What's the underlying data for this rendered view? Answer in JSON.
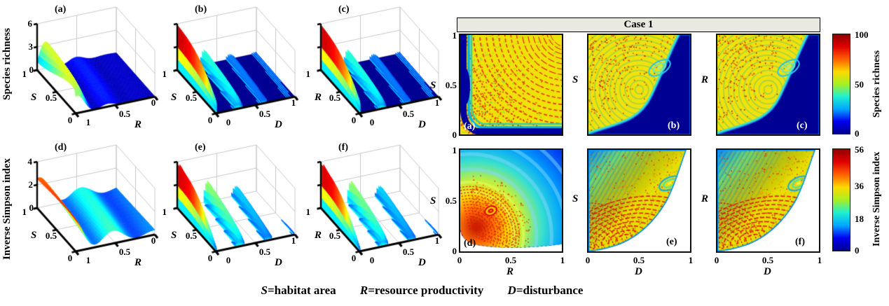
{
  "figure": {
    "case_label": "Case 1",
    "caption": [
      {
        "var": "S",
        "text": "=habitat area"
      },
      {
        "var": "R",
        "text": "=resource productivity"
      },
      {
        "var": "D",
        "text": "=disturbance"
      }
    ],
    "colors": {
      "header_bg": "#e9e9e2",
      "panel_border": "#111111",
      "axis_color": "#000000",
      "grid_color": "#c8c8c8",
      "jet": [
        "#00008f",
        "#0000f0",
        "#00a8ff",
        "#20f0d0",
        "#a8f020",
        "#ffd800",
        "#ff6000",
        "#e00000",
        "#8f0000"
      ]
    }
  },
  "left3d": {
    "row1_label": "Species richness",
    "row2_label": "Inverse Simpson index",
    "panels": [
      {
        "tag": "(a)",
        "z_ticks": [
          "6",
          "3",
          "0"
        ],
        "y_letter": "S",
        "y_ticks": [
          "1",
          "0.5",
          "0"
        ],
        "x_letter": "R",
        "x_ticks": [
          "1",
          "0.5",
          "0"
        ]
      },
      {
        "tag": "(b)",
        "y_letter": "S",
        "y_ticks": [
          "1",
          "0.5",
          "0"
        ],
        "x_letter": "D",
        "x_ticks": [
          "0",
          "0.5",
          "1"
        ]
      },
      {
        "tag": "(c)",
        "y_letter": "R",
        "y_ticks": [
          "1",
          "0.5",
          "0"
        ],
        "x_letter": "D",
        "x_ticks": [
          "0",
          "0.5",
          "1"
        ]
      },
      {
        "tag": "(d)",
        "z_ticks": [
          "4",
          "2",
          "0"
        ],
        "y_letter": "S",
        "y_ticks": [
          "1",
          "0.5",
          "0"
        ],
        "x_letter": "R",
        "x_ticks": [
          "1",
          "0.5",
          "0"
        ]
      },
      {
        "tag": "(e)",
        "y_letter": "S",
        "y_ticks": [
          "1",
          "0.5",
          "0"
        ],
        "x_letter": "D",
        "x_ticks": [
          "0",
          "0.5",
          "1"
        ]
      },
      {
        "tag": "(f)",
        "y_letter": "R",
        "y_ticks": [
          "1",
          "0.5",
          "0"
        ],
        "x_letter": "D",
        "x_ticks": [
          "0",
          "0.5",
          "1"
        ]
      }
    ]
  },
  "right2d": {
    "header": "Case 1",
    "panels": [
      {
        "tag": "(a)",
        "y_letter": "S",
        "y_ticks": [
          "1",
          "0.5",
          "0"
        ]
      },
      {
        "tag": "(b)",
        "y_letter": "S"
      },
      {
        "tag": "(c)",
        "y_letter": "R"
      },
      {
        "tag": "(d)",
        "y_letter": "S",
        "y_ticks": [
          "1",
          "0.5",
          "0"
        ],
        "x_letter": "R",
        "x_ticks": [
          "0",
          "0.5",
          "1"
        ]
      },
      {
        "tag": "(e)",
        "y_letter": "S",
        "x_letter": "D",
        "x_ticks": [
          "0",
          "0.5",
          "1"
        ]
      },
      {
        "tag": "(f)",
        "y_letter": "R",
        "x_letter": "D",
        "x_ticks": [
          "0",
          "0.5",
          "1"
        ]
      }
    ],
    "colorbars": [
      {
        "label": "Species richness",
        "ticks": [
          "100",
          "50",
          "0"
        ]
      },
      {
        "label": "Inverse Simpson index",
        "ticks": [
          "56",
          "36",
          "18",
          "0"
        ]
      }
    ]
  },
  "chart_data": [
    {
      "id": "3d-a",
      "type": "surface",
      "metric": "Species richness",
      "x": "R",
      "x_range": [
        1,
        0
      ],
      "y": "S",
      "y_range": [
        0,
        1
      ],
      "z_ticks": [
        0,
        3,
        6
      ],
      "colormap": "jet",
      "pattern": "oscillating arc-shaped ridges up to ~6 near R=1, decaying to flat 0 (dark blue plane) as R approaches 0"
    },
    {
      "id": "3d-b",
      "type": "surface",
      "metric": "Species richness",
      "x": "D",
      "x_range": [
        0,
        1
      ],
      "y": "S",
      "y_range": [
        0,
        1
      ],
      "colormap": "jet",
      "pattern": "separated curved fins tall near D=0 (red) shrinking toward cyan, flat dark-blue plane for larger D"
    },
    {
      "id": "3d-c",
      "type": "surface",
      "metric": "Species richness",
      "x": "D",
      "x_range": [
        0,
        1
      ],
      "y": "R",
      "y_range": [
        0,
        1
      ],
      "colormap": "jet",
      "pattern": "same fin structure as panel b with R on the depth axis"
    },
    {
      "id": "3d-d",
      "type": "surface",
      "metric": "Inverse Simpson index",
      "x": "R",
      "x_range": [
        1,
        0
      ],
      "y": "S",
      "y_range": [
        0,
        1
      ],
      "z_ticks": [
        0,
        2,
        4
      ],
      "colormap": "jet",
      "pattern": "smooth rolling surface ~2 at R=1 with large red ridge arcs, decaying toward 0 as R approaches 0"
    },
    {
      "id": "3d-e",
      "type": "surface",
      "metric": "Inverse Simpson index",
      "x": "D",
      "x_range": [
        0,
        1
      ],
      "y": "S",
      "y_range": [
        0,
        1
      ],
      "colormap": "jet",
      "pattern": "tall separated red/orange blades with cyan bases at low-to-mid D, no floor fill"
    },
    {
      "id": "3d-f",
      "type": "surface",
      "metric": "Inverse Simpson index",
      "x": "D",
      "x_range": [
        0,
        1
      ],
      "y": "R",
      "y_range": [
        0,
        1
      ],
      "colormap": "jet",
      "pattern": "same blade structure as panel e with R on the depth axis"
    },
    {
      "id": "2d-a",
      "type": "heatmap",
      "case": "Case 1",
      "metric": "Species richness",
      "value_range": [
        0,
        100
      ],
      "x": "R",
      "x_range": [
        0,
        1
      ],
      "y": "S",
      "y_range": [
        0,
        1
      ],
      "colormap": "jet",
      "pattern": "high (yellow, ~60-80) field with dotted red arc bands (~100) concentric about top-right; dark-blue (~0) band along low S and low R edges"
    },
    {
      "id": "2d-b",
      "type": "heatmap",
      "case": "Case 1",
      "metric": "Species richness",
      "value_range": [
        0,
        100
      ],
      "x": "D",
      "x_range": [
        0,
        1
      ],
      "y": "S",
      "y_range": [
        0,
        1
      ],
      "colormap": "jet",
      "pattern": "speckled red/yellow high region upper-left; richness drops to 0 (dark blue) below sigmoid boundary toward high D / low S; cyan eddy near D=0.75, S=0.65"
    },
    {
      "id": "2d-c",
      "type": "heatmap",
      "case": "Case 1",
      "metric": "Species richness",
      "value_range": [
        0,
        100
      ],
      "x": "D",
      "x_range": [
        0,
        1
      ],
      "y": "R",
      "y_range": [
        0,
        1
      ],
      "colormap": "jet",
      "pattern": "nearly identical to panel b with R on vertical axis"
    },
    {
      "id": "2d-d",
      "type": "heatmap",
      "case": "Case 1",
      "metric": "Inverse Simpson index",
      "value_range": [
        0,
        56
      ],
      "x": "R",
      "x_range": [
        0,
        1
      ],
      "y": "S",
      "y_range": [
        0,
        1
      ],
      "colormap": "jet",
      "pattern": "blue (~5-15) hyperbolic bands at high S,R; values rise through green/yellow to chaotic red (~56) arcs near low S,R; white (undefined) sliver hugging the axes"
    },
    {
      "id": "2d-e",
      "type": "heatmap",
      "case": "Case 1",
      "metric": "Inverse Simpson index",
      "value_range": [
        0,
        56
      ],
      "x": "D",
      "x_range": [
        0,
        1
      ],
      "y": "S",
      "y_range": [
        0,
        1
      ],
      "colormap": "jet",
      "pattern": "blue diagonal stripes top-left, yellow/orange speckled core with nested red ridge arcs (~56), cyan-ringed eddy near D=0.8, S=0.65, white region below power-law boundary at high D / low S"
    },
    {
      "id": "2d-f",
      "type": "heatmap",
      "case": "Case 1",
      "metric": "Inverse Simpson index",
      "value_range": [
        0,
        56
      ],
      "x": "D",
      "x_range": [
        0,
        1
      ],
      "y": "R",
      "y_range": [
        0,
        1
      ],
      "colormap": "jet",
      "pattern": "nearly identical to panel e with R on vertical axis"
    }
  ]
}
